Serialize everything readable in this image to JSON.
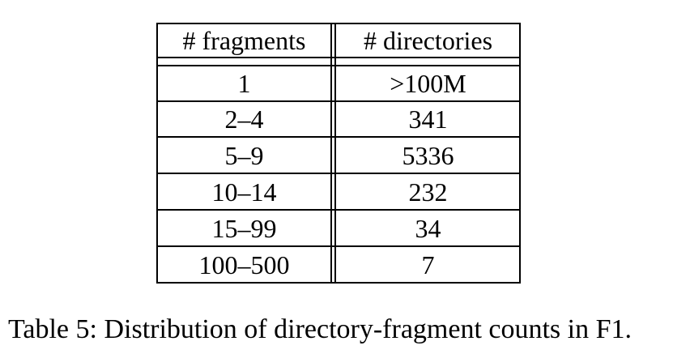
{
  "table": {
    "headers": [
      "# fragments",
      "# directories"
    ],
    "rows": [
      [
        "1",
        ">100M"
      ],
      [
        "2–4",
        "341"
      ],
      [
        "5–9",
        "5336"
      ],
      [
        "10–14",
        "232"
      ],
      [
        "15–99",
        "34"
      ],
      [
        "100–500",
        "7"
      ]
    ]
  },
  "caption": "Table 5: Distribution of directory-fragment counts in F1."
}
